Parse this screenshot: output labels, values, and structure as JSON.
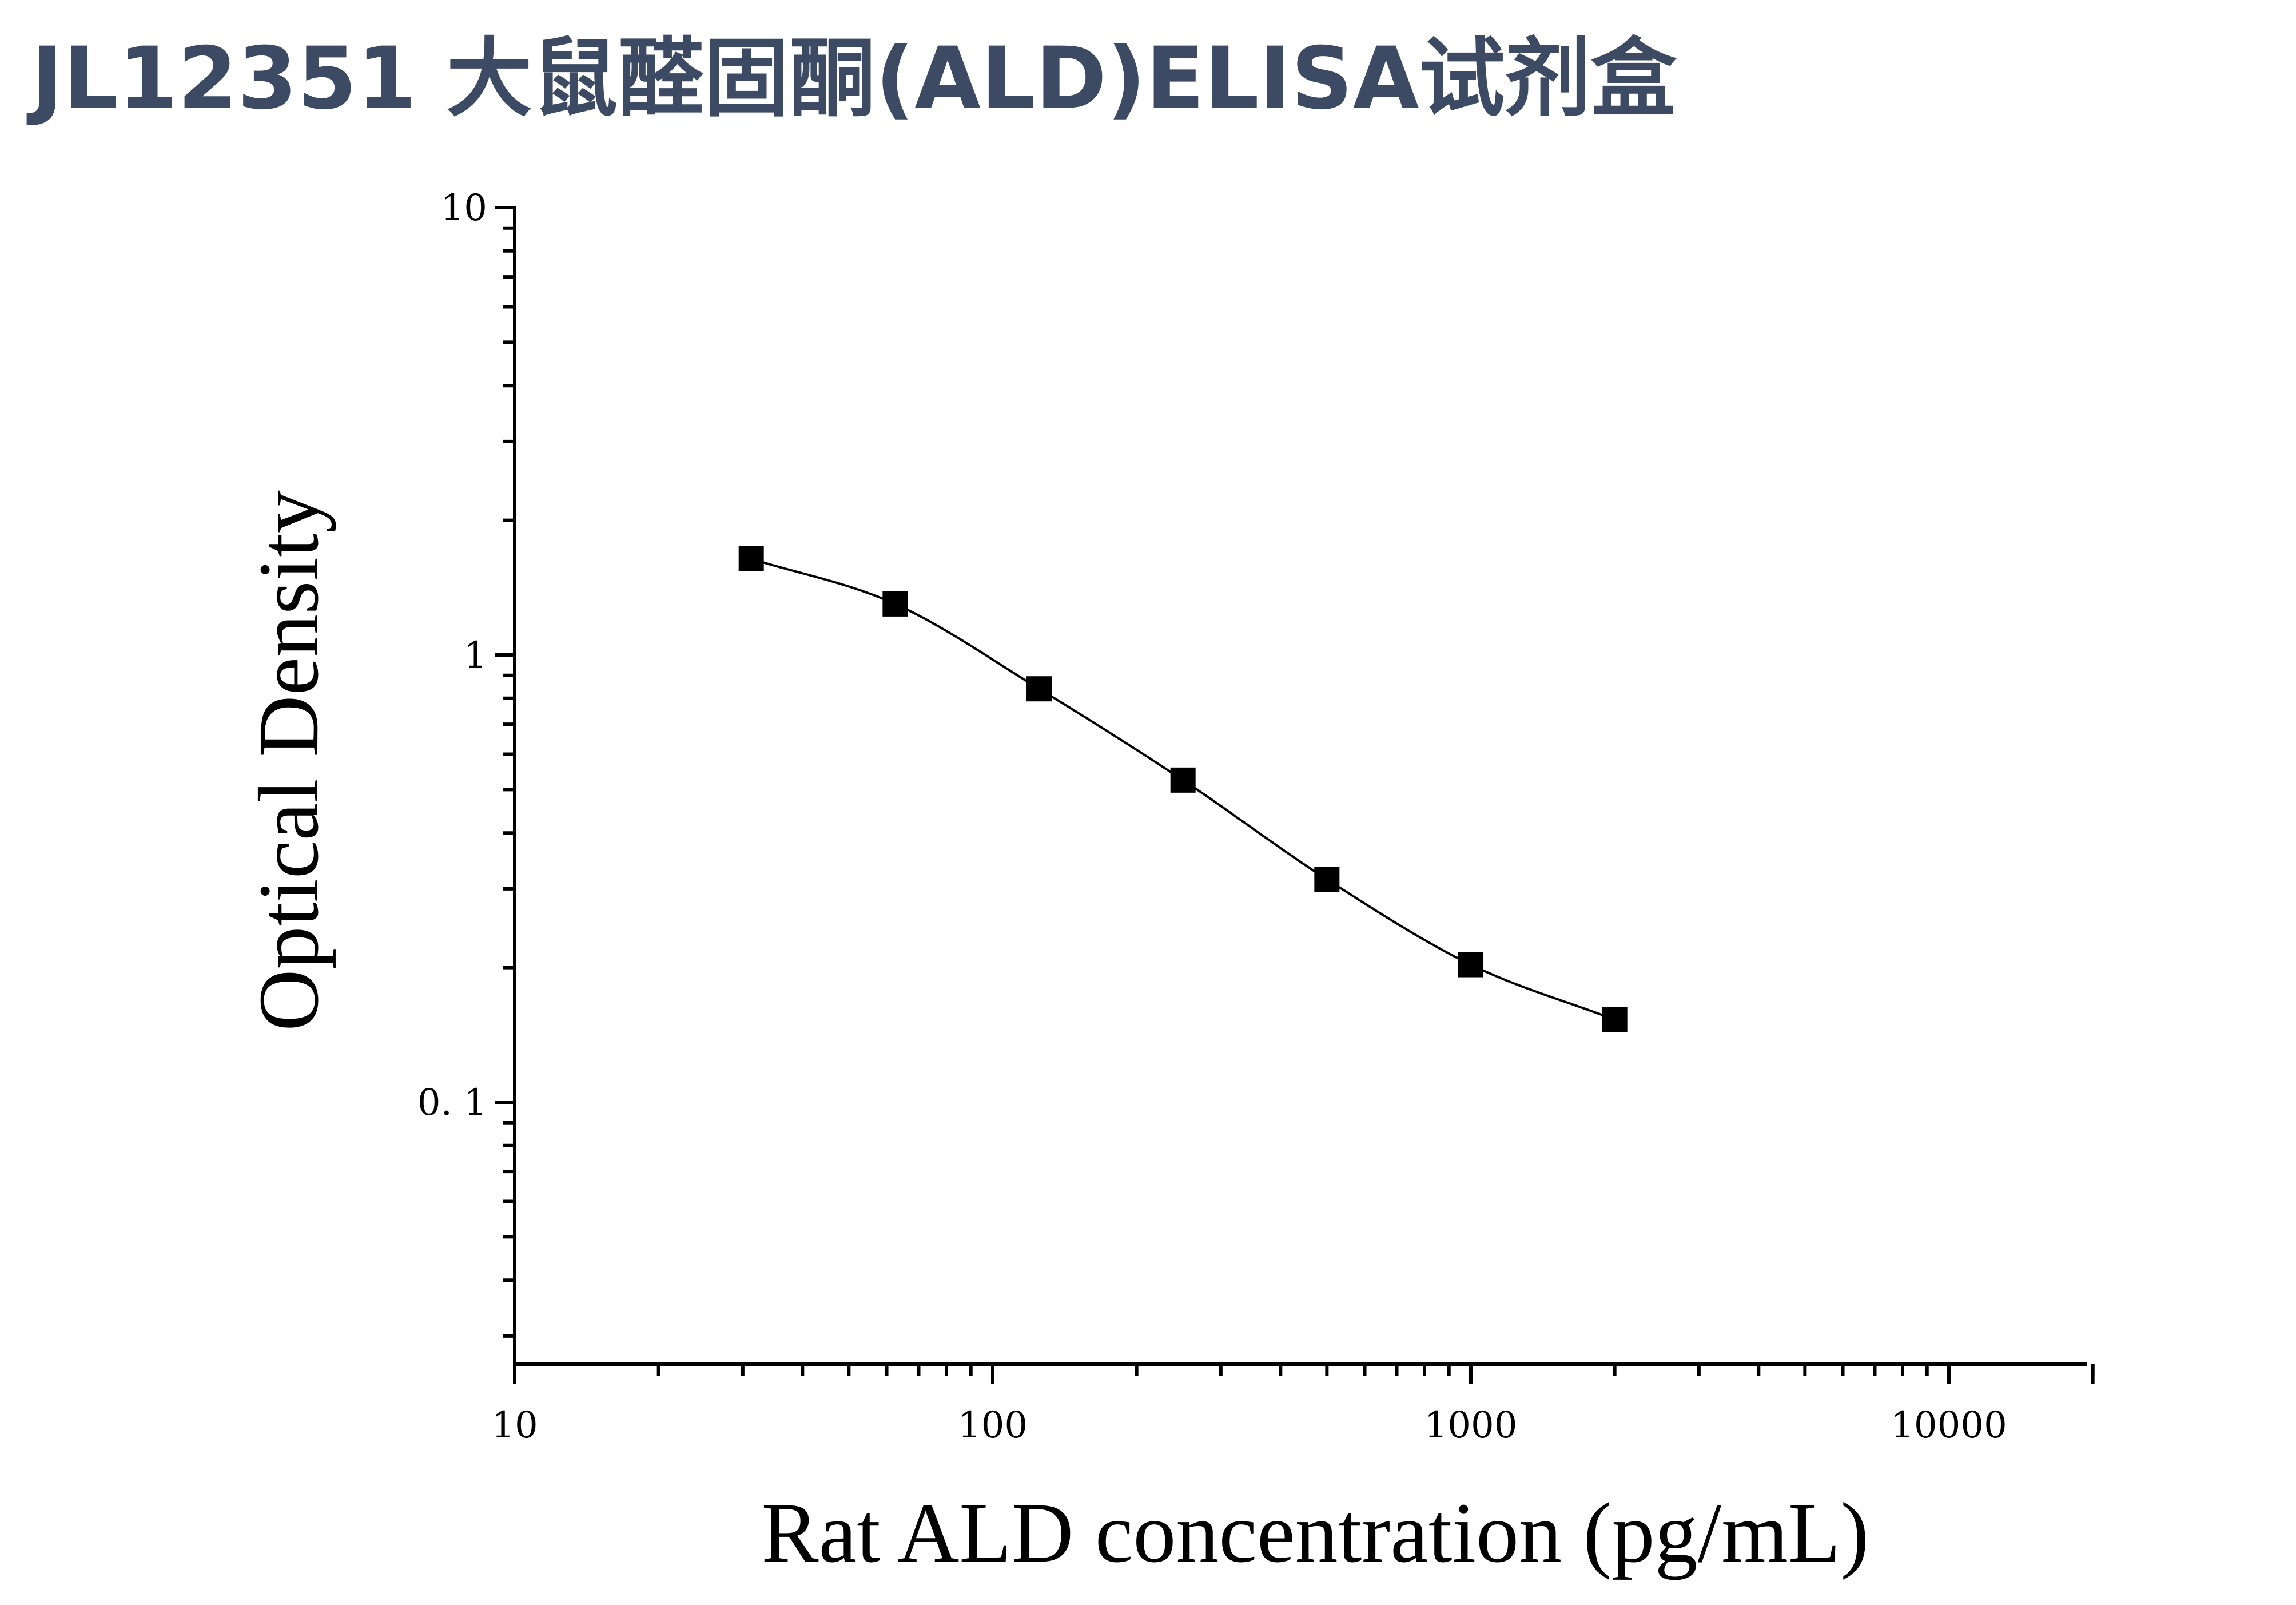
{
  "header": {
    "title": "JL12351 大鼠醛固酮(ALD)ELISA试剂盒"
  },
  "chart_data": {
    "type": "scatter",
    "title": "",
    "xlabel": "Rat ALD concentration (pg/mL)",
    "ylabel": "Optical Density",
    "x_scale": "log",
    "y_scale": "log",
    "xlim": [
      10,
      20000
    ],
    "ylim": [
      0.025,
      10
    ],
    "x_ticks": [
      10,
      100,
      1000,
      10000
    ],
    "x_tick_labels": [
      "10",
      "100",
      "1000",
      "10000"
    ],
    "y_ticks": [
      0.1,
      1,
      10
    ],
    "y_tick_labels": [
      "0. 1",
      "1",
      "10"
    ],
    "grid": false,
    "legend": "none",
    "series": [
      {
        "marker": "square",
        "color": "#000000",
        "fit": "4-parameter logistic curve",
        "x": [
          31.25,
          62.5,
          125,
          250,
          500,
          1000,
          2000
        ],
        "y": [
          1.64,
          1.3,
          0.84,
          0.525,
          0.315,
          0.203,
          0.153
        ]
      }
    ]
  }
}
